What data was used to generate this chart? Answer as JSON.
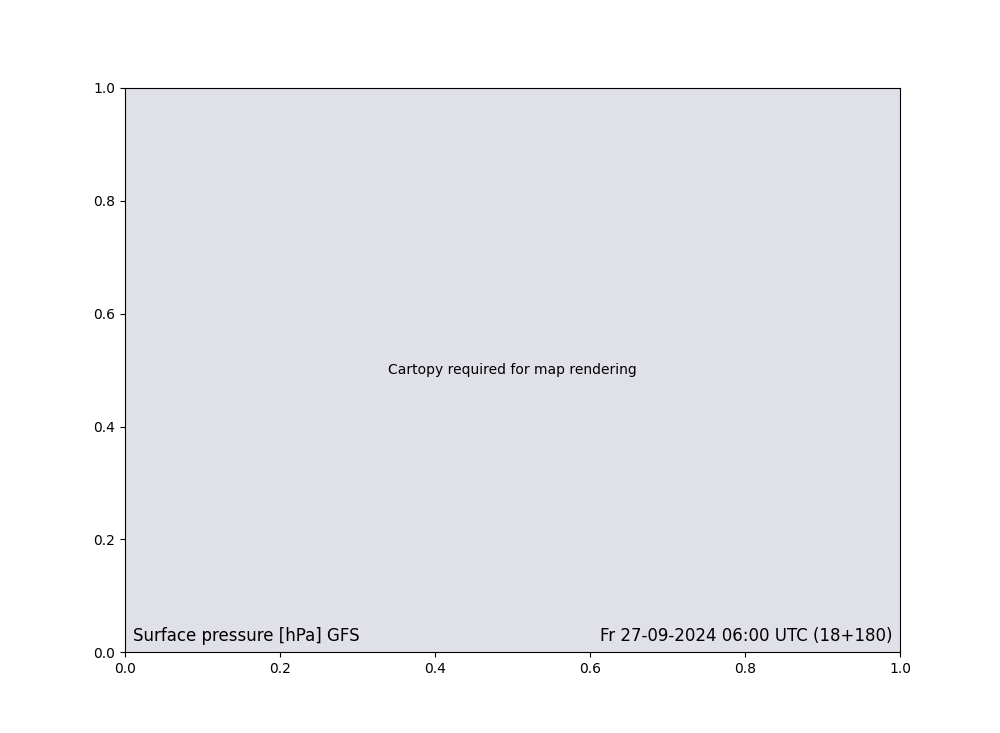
{
  "title_left": "Surface pressure [hPa] GFS",
  "title_right": "Fr 27-09-2024 06:00 UTC (18+180)",
  "bg_color": "#e8e8e8",
  "land_color": "#aaddaa",
  "sea_color": "#e0e0e8",
  "footer_bg": "#ffffff",
  "text_color_left": "#222222",
  "text_color_right": "#222222",
  "watermark_color": "#4444cc",
  "font_size_title": 14,
  "font_size_watermark": 10
}
